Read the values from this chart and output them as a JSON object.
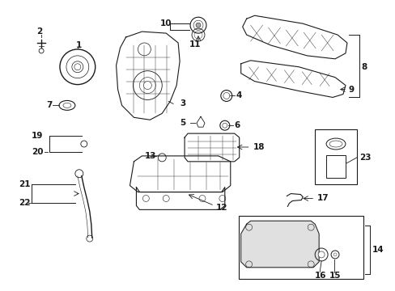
{
  "bg_color": "#ffffff",
  "fig_width": 4.89,
  "fig_height": 3.6,
  "dpi": 100,
  "gray": "#1a1a1a",
  "lw": 0.7,
  "fs": 7.5
}
